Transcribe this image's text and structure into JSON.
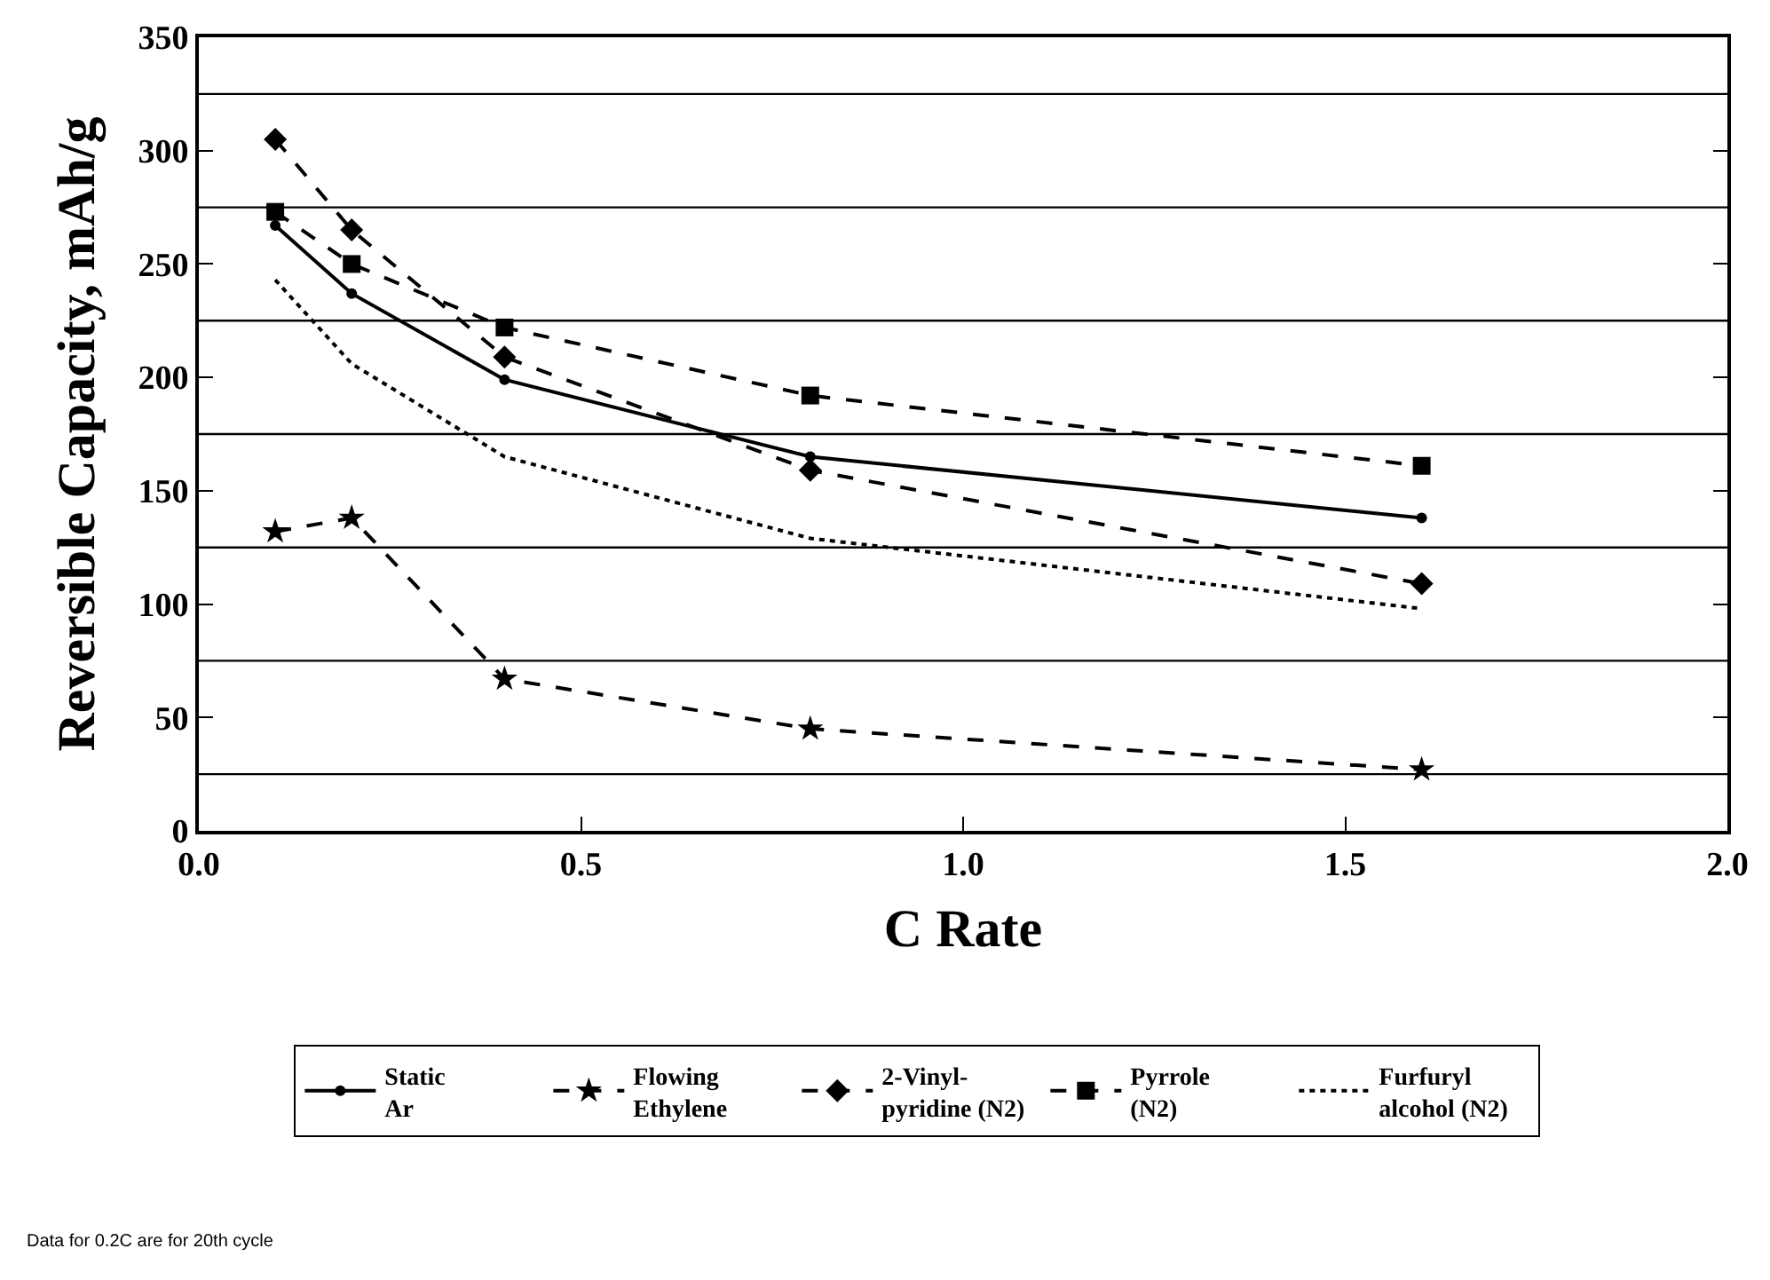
{
  "chart_data": {
    "type": "line",
    "xlabel": "C Rate",
    "ylabel": "Reversible Capacity, mAh/g",
    "x": [
      0.1,
      0.2,
      0.4,
      0.8,
      1.6
    ],
    "series": [
      {
        "name": "Static\nAr",
        "color": "#000000",
        "marker": "circle",
        "line_style": "solid",
        "values": [
          267,
          237,
          199,
          165,
          138
        ]
      },
      {
        "name": "Flowing\nEthylene",
        "color": "#000000",
        "marker": "star",
        "line_style": "dashed",
        "values": [
          132,
          138,
          67,
          45,
          27
        ]
      },
      {
        "name": "2-Vinyl-\npyridine (N2)",
        "color": "#000000",
        "marker": "diamond",
        "line_style": "dashed",
        "values": [
          305,
          265,
          209,
          159,
          109
        ]
      },
      {
        "name": "Pyrrole\n(N2)",
        "color": "#000000",
        "marker": "square",
        "line_style": "dashed",
        "values": [
          273,
          250,
          222,
          192,
          161
        ]
      },
      {
        "name": "Furfuryl\nalcohol (N2)",
        "color": "#000000",
        "marker": "none",
        "line_style": "dotted",
        "values": [
          243,
          206,
          165,
          129,
          98
        ]
      }
    ],
    "xlim": [
      0,
      2
    ],
    "xticks": [
      {
        "value": 0,
        "label": "0.0"
      },
      0.5,
      {
        "value": 1,
        "label": "1.0"
      },
      1.5,
      {
        "value": 2,
        "label": "2.0"
      }
    ],
    "ylim": [
      0,
      350
    ],
    "yticks": [
      0,
      50,
      100,
      150,
      200,
      250,
      300,
      350
    ],
    "ref_lines": [
      {
        "axis": "y",
        "value": 25,
        "color": "#000000"
      },
      {
        "axis": "y",
        "value": 75,
        "color": "#000000"
      },
      {
        "axis": "y",
        "value": 125,
        "color": "#000000"
      },
      {
        "axis": "y",
        "value": 175,
        "color": "#000000"
      },
      {
        "axis": "y",
        "value": 225,
        "color": "#000000"
      },
      {
        "axis": "y",
        "value": 275,
        "color": "#000000"
      },
      {
        "axis": "y",
        "value": 325,
        "color": "#000000"
      }
    ],
    "grid": false,
    "legend": "bottom",
    "annotations": [
      "Data for 0.2C are for 20th cycle"
    ]
  }
}
